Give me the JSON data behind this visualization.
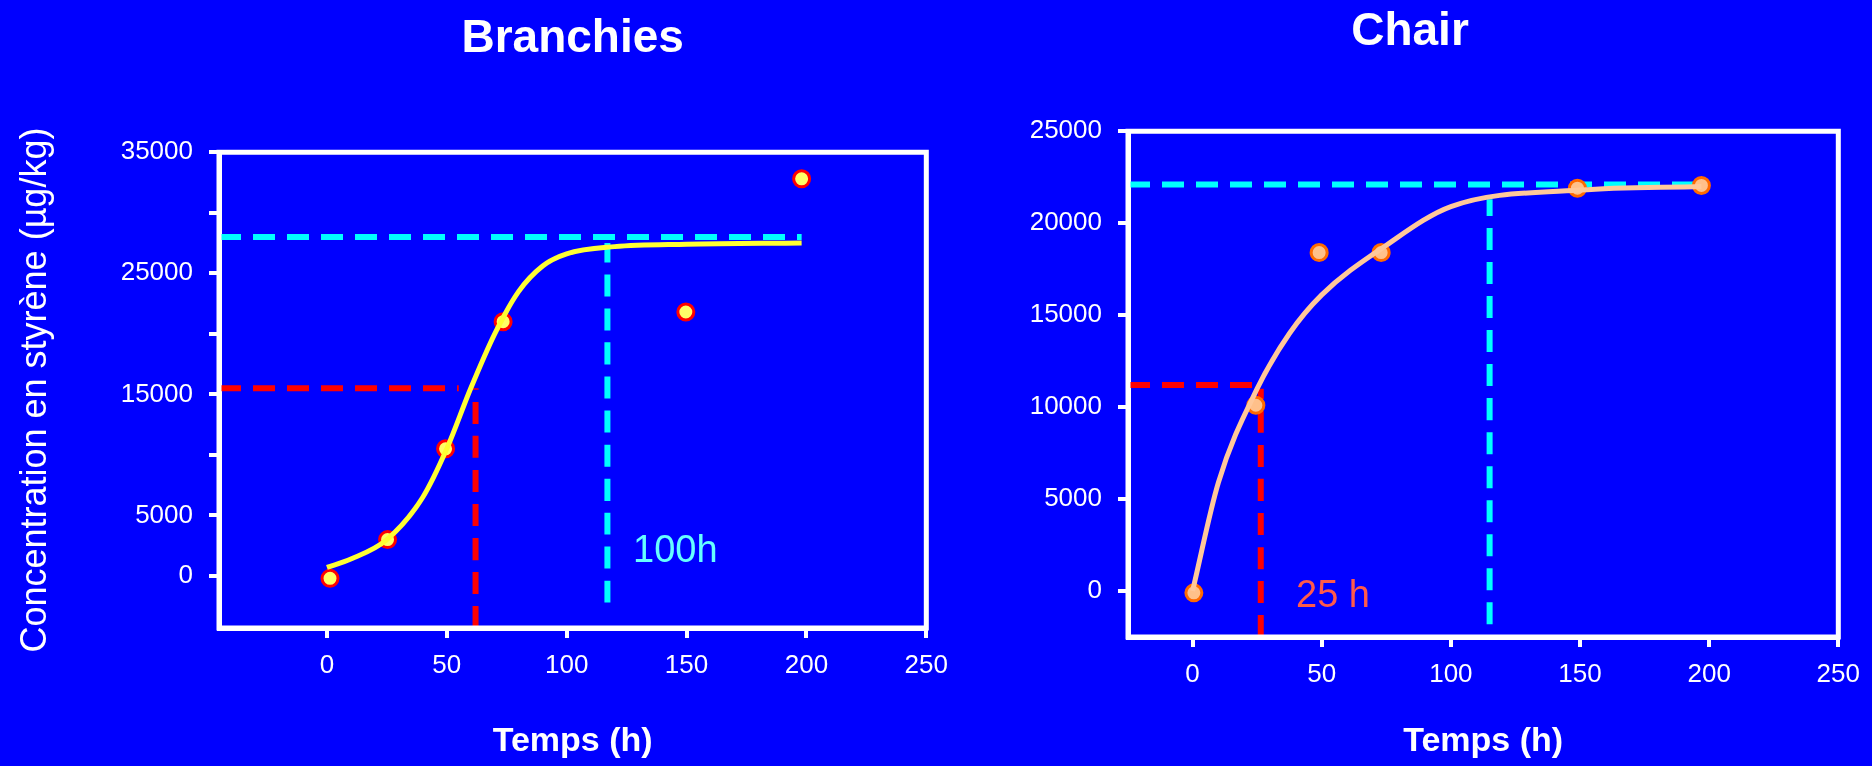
{
  "chart_data": [
    {
      "type": "scatter",
      "title": "Branchies",
      "xlabel": "Temps (h)",
      "ylabel": "Concentration en styrène (µg/kg)",
      "xlim": [
        -45,
        250
      ],
      "ylim": [
        -4300,
        35000
      ],
      "xticks": [
        0,
        50,
        100,
        150,
        200,
        250
      ],
      "yticks": [
        0,
        5000,
        {
          "value": 10000,
          "label": null
        },
        15000,
        {
          "value": 20000,
          "label": null
        },
        25000,
        {
          "value": 30000,
          "label": null
        },
        35000
      ],
      "grid": false,
      "legend": false,
      "marker": "circle",
      "series": [
        {
          "type": "line",
          "color": "#ffff33",
          "marker": "none",
          "x": [
            0,
            10,
            25,
            40,
            50,
            60,
            70,
            80,
            90,
            100,
            120,
            150,
            198
          ],
          "values": [
            700,
            1400,
            3000,
            6500,
            10500,
            15500,
            20000,
            23500,
            25600,
            26600,
            27200,
            27400,
            27500
          ]
        },
        {
          "color": "#ffff66",
          "x": [
            1.3,
            25.3,
            49.5,
            73.5,
            149.7,
            198
          ],
          "values": [
            -200,
            3000,
            10500,
            21000,
            21800,
            32800
          ]
        },
        {
          "type": "line",
          "color": "#ff0000",
          "marker": "none",
          "line_style": "dashed",
          "x": [
            -45,
            55
          ],
          "values": [
            15500,
            15500
          ]
        },
        {
          "type": "line",
          "color": "#ff0000",
          "marker": "none",
          "line_style": "dashed",
          "x": [
            62,
            62
          ],
          "values": [
            -4300,
            15500
          ]
        },
        {
          "type": "line",
          "color": "#00ffff",
          "marker": "none",
          "line_style": "dashed",
          "x": [
            -45,
            198
          ],
          "values": [
            28000,
            28000
          ]
        },
        {
          "type": "line",
          "color": "#00ffff",
          "marker": "none",
          "line_style": "dashed",
          "x": [
            117,
            117
          ],
          "values": [
            -2200,
            27500
          ]
        }
      ],
      "annotations": [
        "100h"
      ]
    },
    {
      "type": "scatter",
      "title": "Chair",
      "xlabel": "Temps (h)",
      "xlim": [
        -25,
        250
      ],
      "ylim": [
        -2500,
        25000
      ],
      "xticks": [
        0,
        50,
        100,
        150,
        200,
        250
      ],
      "yticks": [
        0,
        5000,
        10000,
        15000,
        20000,
        25000
      ],
      "grid": false,
      "legend": false,
      "marker": "circle",
      "series": [
        {
          "type": "line",
          "color": "#ffc89a",
          "marker": "none",
          "x": [
            0,
            10,
            25,
            37.5,
            50,
            75,
            100,
            150,
            197
          ],
          "values": [
            0,
            5900,
            11000,
            14000,
            16100,
            18800,
            20900,
            21800,
            22000
          ]
        },
        {
          "color": "#ffc08a",
          "x": [
            0.5,
            24.5,
            49,
            73,
            149,
            197
          ],
          "values": [
            -100,
            10100,
            18400,
            18400,
            21900,
            22050
          ]
        },
        {
          "type": "line",
          "color": "#ff0000",
          "marker": "none",
          "line_style": "dashed",
          "x": [
            -25,
            27
          ],
          "values": [
            11200,
            11200
          ]
        },
        {
          "type": "line",
          "color": "#ff0000",
          "marker": "none",
          "line_style": "dashed",
          "x": [
            26.4,
            26.4
          ],
          "values": [
            -2500,
            11000
          ]
        },
        {
          "type": "line",
          "color": "#00ffff",
          "marker": "none",
          "line_style": "dashed",
          "x": [
            -25,
            197
          ],
          "values": [
            22100,
            22100
          ]
        },
        {
          "type": "line",
          "color": "#00ffff",
          "marker": "none",
          "line_style": "dashed",
          "x": [
            115,
            115
          ],
          "values": [
            -1800,
            21300
          ]
        }
      ],
      "annotations": [
        "25 h"
      ]
    }
  ]
}
